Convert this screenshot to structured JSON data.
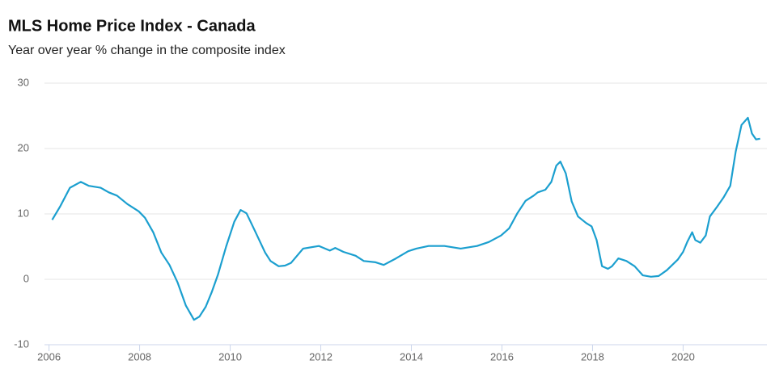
{
  "chart_data": {
    "type": "line",
    "title": "MLS Home Price Index - Canada",
    "subtitle": "Year over year % change in the composite index",
    "color": "#1b9fcf",
    "grid": true,
    "xlim": [
      2005.9,
      2021.85
    ],
    "xticks": [
      2006,
      2008,
      2010,
      2012,
      2014,
      2016,
      2018,
      2020
    ],
    "ylim": [
      -10,
      30
    ],
    "yticks": [
      -10,
      0,
      10,
      20,
      30
    ],
    "x": [
      2006.07,
      2006.25,
      2006.46,
      2006.7,
      2006.88,
      2007.14,
      2007.32,
      2007.5,
      2007.73,
      2007.98,
      2008.12,
      2008.3,
      2008.48,
      2008.66,
      2008.84,
      2009.02,
      2009.2,
      2009.32,
      2009.46,
      2009.59,
      2009.73,
      2009.91,
      2010.09,
      2010.23,
      2010.36,
      2010.54,
      2010.77,
      2010.89,
      2011.07,
      2011.21,
      2011.34,
      2011.61,
      2011.96,
      2012.2,
      2012.32,
      2012.5,
      2012.77,
      2012.95,
      2013.21,
      2013.39,
      2013.66,
      2013.93,
      2014.11,
      2014.38,
      2014.73,
      2015.09,
      2015.45,
      2015.71,
      2015.98,
      2016.16,
      2016.34,
      2016.52,
      2016.7,
      2016.79,
      2016.96,
      2017.09,
      2017.2,
      2017.29,
      2017.41,
      2017.54,
      2017.68,
      2017.86,
      2017.98,
      2018.09,
      2018.21,
      2018.34,
      2018.43,
      2018.57,
      2018.75,
      2018.93,
      2019.11,
      2019.29,
      2019.46,
      2019.64,
      2019.88,
      2020.0,
      2020.09,
      2020.2,
      2020.27,
      2020.38,
      2020.5,
      2020.59,
      2020.75,
      2020.89,
      2021.04,
      2021.16,
      2021.29,
      2021.43,
      2021.52,
      2021.61,
      2021.7
    ],
    "values": [
      9.1,
      11.2,
      14,
      14.9,
      14.3,
      14,
      13.3,
      12.8,
      11.5,
      10.4,
      9.4,
      7.2,
      4.1,
      2.2,
      -0.5,
      -4,
      -6.2,
      -5.7,
      -4.2,
      -2,
      0.7,
      5,
      8.8,
      10.6,
      10.1,
      7.5,
      4.1,
      2.8,
      2,
      2.1,
      2.5,
      4.7,
      5.1,
      4.4,
      4.8,
      4.2,
      3.6,
      2.8,
      2.6,
      2.2,
      3.2,
      4.3,
      4.7,
      5.1,
      5.1,
      4.7,
      5.1,
      5.7,
      6.7,
      7.8,
      10.1,
      12,
      12.8,
      13.3,
      13.7,
      14.9,
      17.4,
      18,
      16.2,
      11.9,
      9.6,
      8.6,
      8.1,
      6,
      2,
      1.6,
      2,
      3.2,
      2.8,
      2,
      0.6,
      0.4,
      0.5,
      1.4,
      3,
      4.2,
      5.7,
      7.2,
      6,
      5.6,
      6.7,
      9.6,
      11.1,
      12.5,
      14.3,
      19.5,
      23.6,
      24.7,
      22.3,
      21.4,
      21.5
    ]
  }
}
